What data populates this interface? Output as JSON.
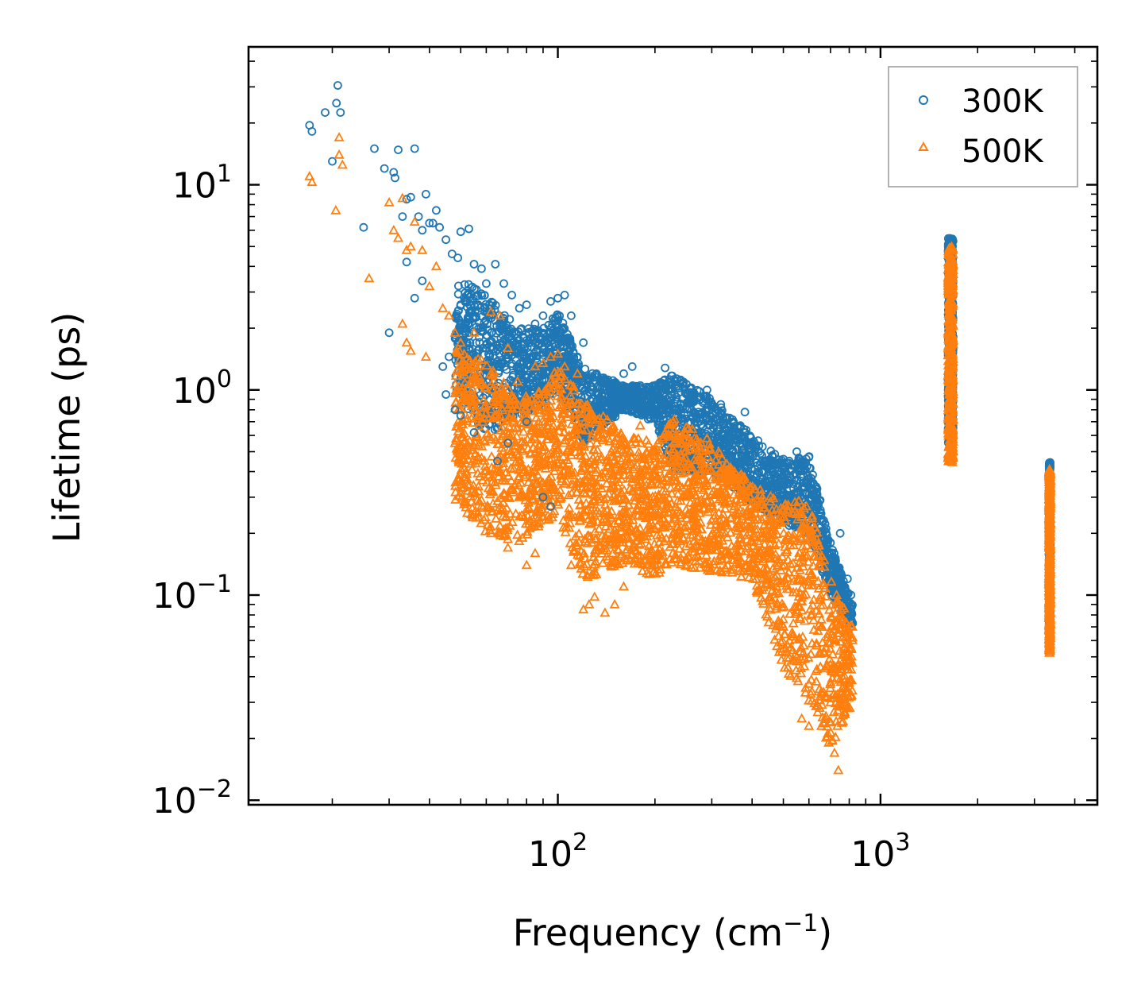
{
  "chart_data": {
    "type": "scatter",
    "xscale": "log",
    "yscale": "log",
    "xlim": [
      11,
      4700
    ],
    "ylim": [
      0.0095,
      47
    ],
    "xlabel": "Frequency (cm",
    "xlabel_sup": "−1",
    "xlabel_close": ")",
    "ylabel": "Lifetime (ps)",
    "x_ticks": [
      {
        "value": 100,
        "base": "10",
        "exp": "2"
      },
      {
        "value": 1000,
        "base": "10",
        "exp": "3"
      }
    ],
    "y_ticks": [
      {
        "value": 0.01,
        "base": "10",
        "exp": "−2"
      },
      {
        "value": 0.1,
        "base": "10",
        "exp": "−1"
      },
      {
        "value": 1,
        "base": "10",
        "exp": "0"
      },
      {
        "value": 10,
        "base": "10",
        "exp": "1"
      }
    ],
    "legend": {
      "placement": "top-right",
      "entries": [
        {
          "label": "300K",
          "marker": "circle",
          "color": "#1f77b4"
        },
        {
          "label": "500K",
          "marker": "triangle",
          "color": "#ff7f0e"
        }
      ]
    },
    "series": [
      {
        "name": "300K",
        "marker": "circle",
        "color": "#1f77b4",
        "points": [
          [
            17,
            19.5
          ],
          [
            17.3,
            18.2
          ],
          [
            19,
            22.5
          ],
          [
            20,
            13
          ],
          [
            20.6,
            25
          ],
          [
            20.8,
            30.5
          ],
          [
            21.2,
            22.5
          ],
          [
            25,
            6.2
          ],
          [
            27,
            15
          ],
          [
            29,
            12
          ],
          [
            31,
            11.5
          ],
          [
            31.3,
            10.8
          ],
          [
            32,
            14.8
          ],
          [
            33,
            7
          ],
          [
            34,
            8.5
          ],
          [
            35,
            8.7
          ],
          [
            36,
            15
          ],
          [
            37,
            7
          ],
          [
            38,
            6
          ],
          [
            39,
            9
          ],
          [
            40,
            6.5
          ],
          [
            41,
            6.5
          ],
          [
            42,
            7.5
          ],
          [
            43,
            6.2
          ],
          [
            45,
            5.4
          ],
          [
            47,
            4.6
          ],
          [
            49,
            4.4
          ],
          [
            50,
            5.9
          ],
          [
            53,
            6.1
          ],
          [
            55,
            4.1
          ],
          [
            58,
            3.9
          ],
          [
            60,
            3.3
          ],
          [
            64,
            4.1
          ],
          [
            68,
            3.3
          ],
          [
            72,
            2.9
          ],
          [
            76,
            2.5
          ],
          [
            80,
            2.6
          ],
          [
            85,
            2.1
          ],
          [
            90,
            2.3
          ],
          [
            95,
            2.7
          ],
          [
            100,
            2.8
          ],
          [
            105,
            2.9
          ],
          [
            110,
            2.3
          ],
          [
            120,
            1.7
          ],
          [
            140,
            1.1
          ],
          [
            160,
            1.2
          ],
          [
            170,
            1.3
          ],
          [
            180,
            1.05
          ],
          [
            200,
            1.05
          ],
          [
            215,
            1.28
          ],
          [
            230,
            0.95
          ],
          [
            260,
            0.87
          ],
          [
            290,
            1.0
          ],
          [
            320,
            0.85
          ],
          [
            350,
            0.63
          ],
          [
            380,
            0.78
          ],
          [
            400,
            0.55
          ],
          [
            450,
            0.42
          ],
          [
            500,
            0.46
          ],
          [
            550,
            0.5
          ],
          [
            600,
            0.47
          ],
          [
            650,
            0.29
          ],
          [
            700,
            0.18
          ],
          [
            750,
            0.2
          ],
          [
            790,
            0.12
          ],
          [
            810,
            0.1
          ],
          [
            30,
            1.9
          ],
          [
            45,
            0.95
          ],
          [
            48,
            0.8
          ],
          [
            50,
            0.75
          ],
          [
            55,
            0.62
          ],
          [
            65,
            0.45
          ],
          [
            70,
            0.55
          ],
          [
            80,
            0.7
          ],
          [
            90,
            0.3
          ],
          [
            95,
            0.27
          ],
          [
            34,
            4.2
          ],
          [
            36,
            2.8
          ],
          [
            38,
            3.4
          ],
          [
            44,
            1.3
          ],
          [
            46,
            1.45
          ]
        ]
      },
      {
        "name": "500K",
        "marker": "triangle",
        "color": "#ff7f0e",
        "points": [
          [
            17,
            11
          ],
          [
            17.3,
            10.3
          ],
          [
            20.5,
            7.5
          ],
          [
            21,
            17
          ],
          [
            21,
            14
          ],
          [
            21.5,
            12.5
          ],
          [
            26,
            3.5
          ],
          [
            30,
            8.2
          ],
          [
            31,
            6
          ],
          [
            32,
            5.5
          ],
          [
            33,
            8.6
          ],
          [
            34,
            4.8
          ],
          [
            35,
            5
          ],
          [
            36,
            6.6
          ],
          [
            38,
            4.8
          ],
          [
            40,
            3.2
          ],
          [
            42,
            4
          ],
          [
            44,
            2.5
          ],
          [
            46,
            2.3
          ],
          [
            48,
            1.9
          ],
          [
            50,
            1.7
          ],
          [
            55,
            1.9
          ],
          [
            58,
            1.4
          ],
          [
            62,
            2.4
          ],
          [
            66,
            2.3
          ],
          [
            70,
            1.6
          ],
          [
            75,
            1.1
          ],
          [
            80,
            0.9
          ],
          [
            85,
            1.3
          ],
          [
            90,
            1.35
          ],
          [
            95,
            1.45
          ],
          [
            100,
            1.5
          ],
          [
            105,
            1.3
          ],
          [
            110,
            1.05
          ],
          [
            115,
            1.2
          ],
          [
            120,
            0.085
          ],
          [
            125,
            0.09
          ],
          [
            130,
            0.098
          ],
          [
            140,
            0.082
          ],
          [
            150,
            0.09
          ],
          [
            160,
            0.11
          ],
          [
            180,
            0.67
          ],
          [
            200,
            0.5
          ],
          [
            215,
            0.62
          ],
          [
            230,
            0.72
          ],
          [
            260,
            0.4
          ],
          [
            290,
            0.58
          ],
          [
            320,
            0.3
          ],
          [
            350,
            0.28
          ],
          [
            380,
            0.32
          ],
          [
            400,
            0.24
          ],
          [
            450,
            0.16
          ],
          [
            480,
            0.09
          ],
          [
            500,
            0.07
          ],
          [
            550,
            0.05
          ],
          [
            570,
            0.025
          ],
          [
            600,
            0.023
          ],
          [
            650,
            0.032
          ],
          [
            700,
            0.03
          ],
          [
            720,
            0.017
          ],
          [
            740,
            0.014
          ],
          [
            780,
            0.05
          ],
          [
            800,
            0.055
          ],
          [
            810,
            0.062
          ],
          [
            33,
            2.1
          ],
          [
            34,
            1.7
          ],
          [
            35,
            1.55
          ],
          [
            39,
            1.45
          ],
          [
            48,
            0.55
          ],
          [
            52,
            0.4
          ],
          [
            58,
            0.29
          ],
          [
            62,
            0.2
          ],
          [
            70,
            0.17
          ],
          [
            80,
            0.14
          ],
          [
            85,
            0.16
          ],
          [
            110,
            0.14
          ],
          [
            130,
            0.16
          ]
        ]
      }
    ],
    "dense_bands": [
      {
        "series": "300K",
        "x": [
          48,
          820
        ],
        "lower": [
          [
            48,
            1.0
          ],
          [
            60,
            0.6
          ],
          [
            75,
            0.75
          ],
          [
            90,
            0.8
          ],
          [
            100,
            1.0
          ],
          [
            120,
            0.55
          ],
          [
            160,
            0.8
          ],
          [
            200,
            0.7
          ],
          [
            230,
            0.4
          ],
          [
            300,
            0.4
          ],
          [
            400,
            0.28
          ],
          [
            500,
            0.22
          ],
          [
            600,
            0.2
          ],
          [
            700,
            0.1
          ],
          [
            820,
            0.07
          ]
        ],
        "upper": [
          [
            48,
            3.5
          ],
          [
            60,
            3.0
          ],
          [
            75,
            2.0
          ],
          [
            90,
            2.0
          ],
          [
            100,
            2.4
          ],
          [
            120,
            1.3
          ],
          [
            160,
            1.05
          ],
          [
            200,
            1.05
          ],
          [
            230,
            1.2
          ],
          [
            300,
            0.9
          ],
          [
            400,
            0.6
          ],
          [
            500,
            0.45
          ],
          [
            600,
            0.48
          ],
          [
            700,
            0.18
          ],
          [
            820,
            0.09
          ]
        ]
      },
      {
        "series": "500K",
        "x": [
          48,
          820
        ],
        "lower": [
          [
            48,
            0.28
          ],
          [
            60,
            0.2
          ],
          [
            75,
            0.18
          ],
          [
            90,
            0.22
          ],
          [
            100,
            0.25
          ],
          [
            120,
            0.12
          ],
          [
            160,
            0.14
          ],
          [
            200,
            0.12
          ],
          [
            230,
            0.14
          ],
          [
            300,
            0.13
          ],
          [
            400,
            0.12
          ],
          [
            500,
            0.045
          ],
          [
            600,
            0.03
          ],
          [
            700,
            0.018
          ],
          [
            820,
            0.03
          ]
        ],
        "upper": [
          [
            48,
            1.6
          ],
          [
            60,
            1.4
          ],
          [
            75,
            0.9
          ],
          [
            90,
            1.0
          ],
          [
            100,
            1.3
          ],
          [
            120,
            0.9
          ],
          [
            160,
            0.62
          ],
          [
            200,
            0.55
          ],
          [
            230,
            0.75
          ],
          [
            300,
            0.55
          ],
          [
            400,
            0.35
          ],
          [
            500,
            0.28
          ],
          [
            600,
            0.3
          ],
          [
            700,
            0.12
          ],
          [
            820,
            0.07
          ]
        ]
      },
      {
        "series": "300K",
        "x": [
          1620,
          1680
        ],
        "lower": [
          [
            1620,
            0.55
          ],
          [
            1680,
            0.55
          ]
        ],
        "upper": [
          [
            1620,
            5.5
          ],
          [
            1680,
            5.5
          ]
        ]
      },
      {
        "series": "500K",
        "x": [
          1620,
          1680
        ],
        "lower": [
          [
            1620,
            0.44
          ],
          [
            1680,
            0.44
          ]
        ],
        "upper": [
          [
            1620,
            5.0
          ],
          [
            1680,
            5.0
          ]
        ]
      },
      {
        "series": "300K",
        "x": [
          3330,
          3360
        ],
        "lower": [
          [
            3330,
            0.07
          ],
          [
            3360,
            0.07
          ]
        ],
        "upper": [
          [
            3330,
            0.45
          ],
          [
            3360,
            0.45
          ]
        ]
      },
      {
        "series": "500K",
        "x": [
          3330,
          3360
        ],
        "lower": [
          [
            3330,
            0.052
          ],
          [
            3360,
            0.052
          ]
        ],
        "upper": [
          [
            3330,
            0.41
          ],
          [
            3360,
            0.41
          ]
        ]
      }
    ]
  }
}
